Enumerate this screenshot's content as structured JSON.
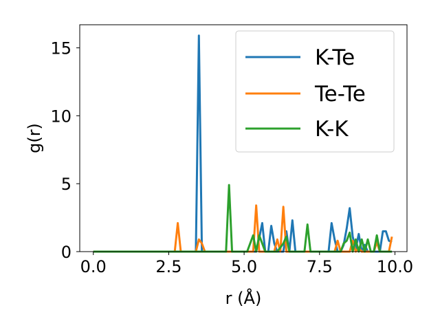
{
  "chart_data": {
    "type": "line",
    "xlabel": "r (Å)",
    "ylabel": "g(r)",
    "xlim": [
      -0.45,
      10.4
    ],
    "ylim": [
      0,
      16.7
    ],
    "xticks": [
      0.0,
      2.5,
      5.0,
      7.5,
      10.0
    ],
    "xtick_labels": [
      "0.0",
      "2.5",
      "5.0",
      "7.5",
      "10.0"
    ],
    "yticks": [
      0,
      5,
      10,
      15
    ],
    "ytick_labels": [
      "0",
      "5",
      "10",
      "15"
    ],
    "grid": false,
    "legend_position": "top-right",
    "series": [
      {
        "name": "K-Te",
        "color": "#1f77b4",
        "x": [
          0.0,
          3.4,
          3.5,
          3.6,
          3.7,
          5.4,
          5.5,
          5.6,
          5.7,
          5.8,
          5.9,
          6.0,
          6.1,
          6.2,
          6.3,
          6.4,
          6.5,
          6.6,
          6.7,
          7.8,
          7.9,
          8.0,
          8.1,
          8.2,
          8.3,
          8.4,
          8.5,
          8.6,
          8.7,
          8.8,
          8.9,
          9.0,
          9.1,
          9.2,
          9.3,
          9.4,
          9.5,
          9.6,
          9.7,
          9.8,
          9.9
        ],
        "y": [
          0.0,
          0.0,
          15.9,
          0.0,
          0.0,
          0.0,
          1.0,
          2.1,
          0.0,
          0.0,
          1.9,
          0.6,
          0.0,
          0.0,
          0.0,
          1.5,
          0.0,
          2.3,
          0.0,
          0.0,
          2.1,
          0.9,
          0.0,
          0.0,
          0.5,
          1.7,
          3.2,
          1.1,
          0.2,
          1.3,
          0.0,
          0.5,
          0.0,
          0.0,
          0.0,
          0.0,
          0.0,
          1.5,
          1.5,
          0.8,
          0.7
        ]
      },
      {
        "name": "Te-Te",
        "color": "#ff7f0e",
        "x": [
          0.0,
          2.7,
          2.8,
          2.9,
          3.4,
          3.5,
          3.6,
          3.7,
          5.2,
          5.3,
          5.4,
          5.5,
          5.6,
          5.9,
          6.0,
          6.1,
          6.2,
          6.3,
          6.4,
          6.5,
          8.0,
          8.1,
          8.2,
          8.5,
          8.6,
          8.7,
          8.8,
          8.9,
          9.0,
          9.3,
          9.4,
          9.5,
          9.8,
          9.9
        ],
        "y": [
          0.0,
          0.0,
          2.1,
          0.0,
          0.0,
          0.9,
          0.6,
          0.0,
          0.0,
          0.0,
          3.4,
          0.0,
          0.0,
          0.0,
          0.0,
          0.9,
          0.0,
          3.3,
          0.0,
          0.0,
          0.0,
          0.8,
          0.0,
          0.0,
          0.8,
          0.0,
          0.3,
          0.0,
          0.0,
          0.0,
          0.7,
          0.0,
          0.0,
          1.1
        ]
      },
      {
        "name": "K-K",
        "color": "#2ca02c",
        "x": [
          0.0,
          4.4,
          4.5,
          4.6,
          5.1,
          5.2,
          5.3,
          5.4,
          5.5,
          5.6,
          5.7,
          6.1,
          6.2,
          6.3,
          6.4,
          6.5,
          7.0,
          7.1,
          7.2,
          8.2,
          8.3,
          8.4,
          8.5,
          8.6,
          8.7,
          8.8,
          8.9,
          9.0,
          9.1,
          9.2,
          9.3,
          9.4,
          9.5,
          9.6,
          9.9
        ],
        "y": [
          0.0,
          0.0,
          4.9,
          0.0,
          0.0,
          0.6,
          1.2,
          0.0,
          1.2,
          0.6,
          0.0,
          0.0,
          0.3,
          0.6,
          1.1,
          0.0,
          0.0,
          2.0,
          0.0,
          0.0,
          0.6,
          0.8,
          1.4,
          0.0,
          0.9,
          0.0,
          0.9,
          0.0,
          0.9,
          0.0,
          0.0,
          1.2,
          0.0,
          0.0,
          0.0
        ]
      }
    ]
  }
}
